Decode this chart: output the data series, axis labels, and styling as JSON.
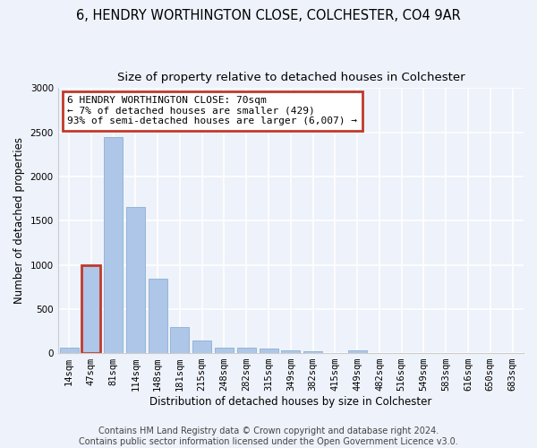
{
  "title_line1": "6, HENDRY WORTHINGTON CLOSE, COLCHESTER, CO4 9AR",
  "title_line2": "Size of property relative to detached houses in Colchester",
  "xlabel": "Distribution of detached houses by size in Colchester",
  "ylabel": "Number of detached properties",
  "categories": [
    "14sqm",
    "47sqm",
    "81sqm",
    "114sqm",
    "148sqm",
    "181sqm",
    "215sqm",
    "248sqm",
    "282sqm",
    "315sqm",
    "349sqm",
    "382sqm",
    "415sqm",
    "449sqm",
    "482sqm",
    "516sqm",
    "549sqm",
    "583sqm",
    "616sqm",
    "650sqm",
    "683sqm"
  ],
  "values": [
    60,
    1000,
    2450,
    1650,
    840,
    300,
    145,
    60,
    60,
    50,
    30,
    20,
    0,
    30,
    0,
    0,
    0,
    0,
    0,
    0,
    0
  ],
  "highlight_index": 1,
  "bar_color": "#aec6e8",
  "bar_edgecolor": "#8ab0d0",
  "highlight_edgecolor": "#c0392b",
  "ylim": [
    0,
    3000
  ],
  "yticks": [
    0,
    500,
    1000,
    1500,
    2000,
    2500,
    3000
  ],
  "annotation_box_text": "6 HENDRY WORTHINGTON CLOSE: 70sqm\n← 7% of detached houses are smaller (429)\n93% of semi-detached houses are larger (6,007) →",
  "footer_line1": "Contains HM Land Registry data © Crown copyright and database right 2024.",
  "footer_line2": "Contains public sector information licensed under the Open Government Licence v3.0.",
  "background_color": "#eef2fa",
  "grid_color": "#ffffff",
  "title_fontsize": 10.5,
  "subtitle_fontsize": 9.5,
  "axis_label_fontsize": 8.5,
  "tick_fontsize": 7.5,
  "annotation_fontsize": 8,
  "footer_fontsize": 7
}
